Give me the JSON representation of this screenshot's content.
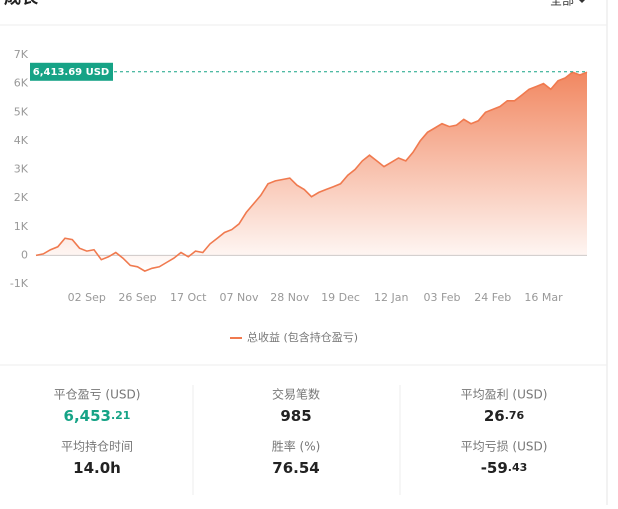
{
  "header": {
    "title": "成长",
    "filter": "全部"
  },
  "chart_data": {
    "type": "line",
    "series": [
      {
        "name": "总收益 (包含持仓盈亏)",
        "color": "#f07a4f",
        "values": [
          0,
          50,
          200,
          300,
          600,
          550,
          250,
          150,
          200,
          -150,
          -50,
          100,
          -100,
          -350,
          -400,
          -550,
          -450,
          -400,
          -250,
          -100,
          100,
          -50,
          150,
          100,
          400,
          600,
          800,
          900,
          1100,
          1500,
          1800,
          2100,
          2500,
          2600,
          2650,
          2700,
          2450,
          2300,
          2050,
          2200,
          2300,
          2400,
          2500,
          2800,
          3000,
          3300,
          3500,
          3300,
          3100,
          3250,
          3400,
          3300,
          3600,
          4000,
          4300,
          4450,
          4600,
          4500,
          4550,
          4750,
          4600,
          4700,
          5000,
          5100,
          5200,
          5400,
          5400,
          5600,
          5800,
          5900,
          6000,
          5800,
          6100,
          6200,
          6400,
          6300,
          6400
        ]
      }
    ],
    "xlim": [
      0,
      76
    ],
    "xticks": [
      {
        "value": 7,
        "label": "02 Sep"
      },
      {
        "value": 14,
        "label": "26 Sep"
      },
      {
        "value": 21,
        "label": "17 Oct"
      },
      {
        "value": 28,
        "label": "07 Nov"
      },
      {
        "value": 35,
        "label": "28 Nov"
      },
      {
        "value": 42,
        "label": "19 Dec"
      },
      {
        "value": 49,
        "label": "12 Jan"
      },
      {
        "value": 56,
        "label": "03 Feb"
      },
      {
        "value": 63,
        "label": "24 Feb"
      },
      {
        "value": 70,
        "label": "16 Mar"
      }
    ],
    "ylim": [
      -1000,
      7000
    ],
    "yticks": [
      {
        "value": -1000,
        "label": "-1K"
      },
      0,
      {
        "value": 1000,
        "label": "1K"
      },
      {
        "value": 2000,
        "label": "2K"
      },
      {
        "value": 3000,
        "label": "3K"
      },
      {
        "value": 4000,
        "label": "4K"
      },
      {
        "value": 5000,
        "label": "5K"
      },
      {
        "value": 6000,
        "label": "6K"
      },
      {
        "value": 7000,
        "label": "7K"
      }
    ],
    "marker": {
      "value": 6413.69,
      "label": "6,413.69 USD"
    },
    "marker_color": "#16a386"
  },
  "stats": [
    {
      "label": "平仓盈亏 (USD)",
      "int": "6,453",
      "dec": ".21",
      "color": "#16a386"
    },
    {
      "label": "交易笔数",
      "int": "985",
      "dec": "",
      "color": "#222222"
    },
    {
      "label": "平均盈利 (USD)",
      "int": "26",
      "dec": ".76",
      "color": "#222222"
    },
    {
      "label": "平均持仓时间",
      "int": "14.0h",
      "dec": "",
      "color": "#222222"
    },
    {
      "label": "胜率 (%)",
      "int": "76.54",
      "dec": "",
      "color": "#222222"
    },
    {
      "label": "平均亏损 (USD)",
      "int": "-59",
      "dec": ".43",
      "color": "#222222"
    }
  ]
}
